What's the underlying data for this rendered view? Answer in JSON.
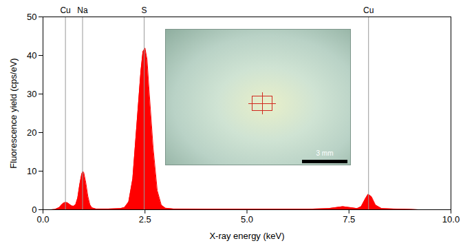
{
  "chart_data": {
    "type": "area",
    "x_label": "X-ray energy (keV)",
    "y_label": "Fluorescence yield (cps/eV)",
    "color": "#ff0000",
    "x": [
      0.2,
      0.3,
      0.4,
      0.45,
      0.5,
      0.55,
      0.6,
      0.65,
      0.7,
      0.75,
      0.8,
      0.85,
      0.9,
      0.95,
      0.98,
      1.0,
      1.05,
      1.1,
      1.15,
      1.2,
      1.3,
      1.6,
      1.9,
      2.0,
      2.1,
      2.2,
      2.3,
      2.4,
      2.45,
      2.5,
      2.55,
      2.6,
      2.7,
      2.8,
      2.9,
      3.0,
      3.2,
      5.0,
      6.5,
      7.0,
      7.2,
      7.35,
      7.5,
      7.7,
      7.8,
      7.9,
      7.97,
      8.05,
      8.15,
      8.3,
      8.6,
      9.0,
      9.2
    ],
    "values": [
      0,
      0.1,
      0.6,
      1.2,
      1.7,
      1.9,
      1.8,
      1.4,
      1.0,
      0.9,
      1.3,
      3.0,
      6.5,
      9.3,
      9.9,
      9.6,
      7.0,
      3.5,
      1.3,
      0.5,
      0.2,
      0.2,
      0.3,
      0.6,
      2.0,
      8,
      22,
      36,
      41,
      41.9,
      39,
      31,
      16,
      5,
      1.2,
      0.4,
      0.2,
      0.15,
      0.15,
      0.3,
      0.6,
      0.8,
      0.6,
      0.3,
      0.8,
      2.8,
      4.0,
      3.4,
      1.2,
      0.3,
      0.2,
      0.1,
      0
    ],
    "xlim": [
      0,
      10
    ],
    "xticks": [
      {
        "value": 0,
        "label": "0.0"
      },
      {
        "value": 2.5,
        "label": "2.5"
      },
      {
        "value": 5,
        "label": "5.0"
      },
      {
        "value": 7.5,
        "label": "7.5"
      },
      {
        "value": 10,
        "label": "10.0"
      }
    ],
    "ylim": [
      0,
      50
    ],
    "yticks": [
      0,
      10,
      20,
      30,
      40,
      50
    ],
    "annotations": [
      {
        "text": "Cu",
        "x": 0.55
      },
      {
        "text": "Na",
        "x": 0.97
      },
      {
        "text": "S",
        "x": 2.48
      },
      {
        "text": "Cu",
        "x": 7.98
      }
    ],
    "photo_scale_bar": "3 mm"
  }
}
